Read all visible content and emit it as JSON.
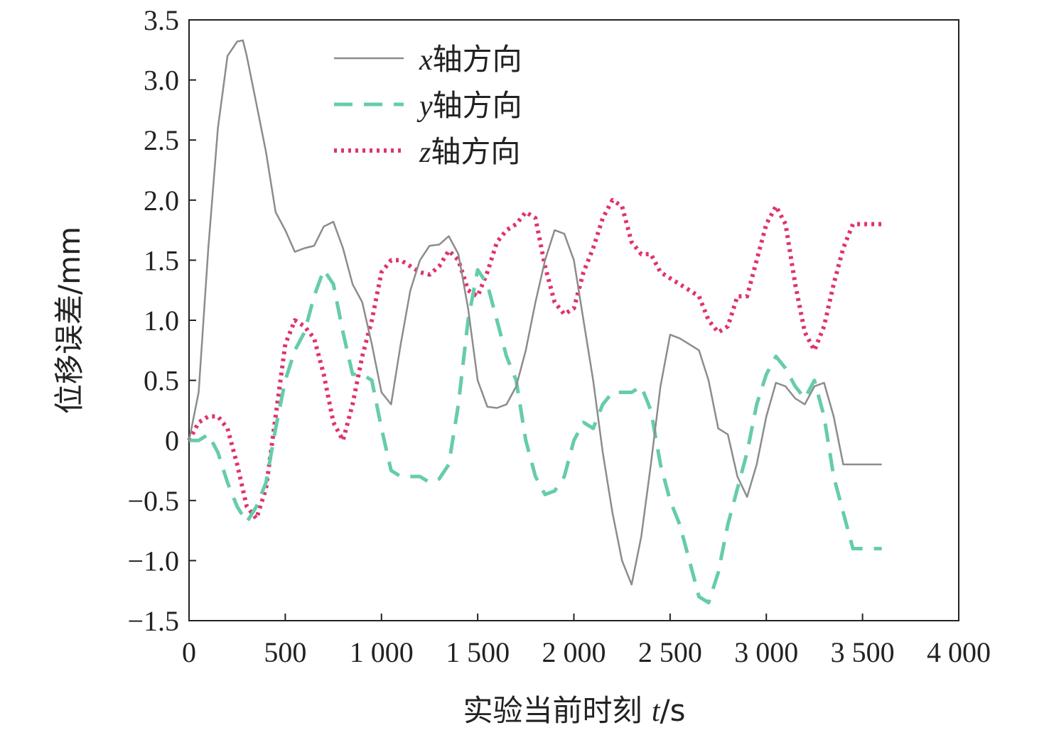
{
  "chart_data": {
    "type": "line",
    "xlabel": {
      "prefix": "实验当前时刻 ",
      "var": "t",
      "suffix": "/s"
    },
    "ylabel": "位移误差/mm",
    "xlim": [
      0,
      4000
    ],
    "ylim": [
      -1.5,
      3.5
    ],
    "x_ticks": [
      0,
      500,
      1000,
      1500,
      2000,
      2500,
      3000,
      3500,
      4000
    ],
    "x_tick_labels": [
      "0",
      "500",
      "1 000",
      "1 500",
      "2 000",
      "2 500",
      "3 000",
      "3 500",
      "4 000"
    ],
    "y_ticks": [
      -1.5,
      -1.0,
      -0.5,
      0,
      0.5,
      1.0,
      1.5,
      2.0,
      2.5,
      3.0,
      3.5
    ],
    "y_tick_labels": [
      "−1.5",
      "−1.0",
      "−0.5",
      "0",
      "0.5",
      "1.0",
      "1.5",
      "2.0",
      "2.5",
      "3.0",
      "3.5"
    ],
    "grid": false,
    "legend_position": "top-left",
    "series": [
      {
        "name": "x轴方向",
        "legend_var": "x",
        "legend_suffix": "轴方向",
        "style": "solid",
        "color": "#8c8c8c",
        "x": [
          0,
          50,
          100,
          150,
          200,
          250,
          280,
          300,
          350,
          400,
          450,
          500,
          550,
          600,
          650,
          700,
          750,
          800,
          850,
          900,
          950,
          1000,
          1050,
          1100,
          1150,
          1200,
          1250,
          1300,
          1350,
          1400,
          1450,
          1500,
          1550,
          1600,
          1650,
          1700,
          1750,
          1800,
          1850,
          1900,
          1950,
          2000,
          2050,
          2100,
          2150,
          2200,
          2250,
          2300,
          2350,
          2400,
          2450,
          2500,
          2550,
          2600,
          2650,
          2700,
          2750,
          2800,
          2850,
          2900,
          2950,
          3000,
          3050,
          3100,
          3150,
          3200,
          3250,
          3300,
          3350,
          3400,
          3450,
          3500,
          3550,
          3600
        ],
        "y": [
          0,
          0.4,
          1.6,
          2.6,
          3.2,
          3.32,
          3.33,
          3.2,
          2.8,
          2.4,
          1.9,
          1.75,
          1.57,
          1.6,
          1.62,
          1.78,
          1.82,
          1.6,
          1.3,
          1.15,
          0.8,
          0.4,
          0.3,
          0.8,
          1.25,
          1.5,
          1.62,
          1.63,
          1.7,
          1.55,
          1.1,
          0.5,
          0.28,
          0.27,
          0.3,
          0.45,
          0.75,
          1.15,
          1.5,
          1.75,
          1.72,
          1.5,
          1.0,
          0.5,
          -0.1,
          -0.6,
          -1.0,
          -1.2,
          -0.8,
          -0.2,
          0.45,
          0.88,
          0.85,
          0.8,
          0.75,
          0.5,
          0.1,
          0.05,
          -0.3,
          -0.47,
          -0.2,
          0.2,
          0.48,
          0.45,
          0.35,
          0.3,
          0.45,
          0.48,
          0.2,
          -0.2,
          -0.2,
          -0.2,
          -0.2,
          -0.2
        ]
      },
      {
        "name": "y轴方向",
        "legend_var": "y",
        "legend_suffix": "轴方向",
        "style": "dashed",
        "color": "#66ccaa",
        "x": [
          0,
          50,
          100,
          150,
          200,
          250,
          300,
          350,
          400,
          450,
          500,
          550,
          600,
          650,
          700,
          750,
          800,
          850,
          900,
          950,
          1000,
          1050,
          1100,
          1150,
          1200,
          1250,
          1300,
          1350,
          1400,
          1450,
          1500,
          1550,
          1600,
          1650,
          1700,
          1750,
          1800,
          1850,
          1900,
          1950,
          2000,
          2050,
          2100,
          2150,
          2200,
          2250,
          2300,
          2350,
          2400,
          2450,
          2500,
          2550,
          2600,
          2650,
          2700,
          2750,
          2800,
          2850,
          2900,
          2950,
          3000,
          3050,
          3100,
          3150,
          3200,
          3250,
          3300,
          3350,
          3400,
          3450,
          3500,
          3550,
          3600
        ],
        "y": [
          0,
          0,
          0.05,
          -0.1,
          -0.35,
          -0.55,
          -0.68,
          -0.55,
          -0.35,
          0.1,
          0.5,
          0.75,
          0.9,
          1.2,
          1.42,
          1.3,
          0.9,
          0.55,
          0.55,
          0.5,
          0.1,
          -0.25,
          -0.3,
          -0.3,
          -0.3,
          -0.35,
          -0.32,
          -0.2,
          0.3,
          1.0,
          1.42,
          1.3,
          1.0,
          0.7,
          0.5,
          0.0,
          -0.3,
          -0.45,
          -0.42,
          -0.3,
          0.0,
          0.15,
          0.1,
          0.3,
          0.4,
          0.4,
          0.4,
          0.45,
          0.25,
          -0.2,
          -0.5,
          -0.7,
          -1.0,
          -1.3,
          -1.35,
          -1.1,
          -0.7,
          -0.4,
          -0.1,
          0.3,
          0.55,
          0.7,
          0.6,
          0.45,
          0.35,
          0.5,
          0.2,
          -0.3,
          -0.6,
          -0.9,
          -0.9,
          -0.9,
          -0.9
        ]
      },
      {
        "name": "z轴方向",
        "legend_var": "z",
        "legend_suffix": "轴方向",
        "style": "dotted",
        "color": "#e0336e",
        "x": [
          0,
          50,
          100,
          150,
          200,
          250,
          300,
          350,
          400,
          450,
          500,
          550,
          600,
          650,
          700,
          750,
          800,
          850,
          900,
          950,
          1000,
          1050,
          1100,
          1150,
          1200,
          1250,
          1300,
          1350,
          1400,
          1450,
          1500,
          1550,
          1600,
          1650,
          1700,
          1750,
          1800,
          1850,
          1900,
          1950,
          2000,
          2050,
          2100,
          2150,
          2200,
          2250,
          2300,
          2350,
          2400,
          2450,
          2500,
          2550,
          2600,
          2650,
          2700,
          2750,
          2800,
          2850,
          2900,
          2950,
          3000,
          3050,
          3100,
          3150,
          3200,
          3250,
          3300,
          3350,
          3400,
          3450,
          3500,
          3550,
          3600
        ],
        "y": [
          0,
          0.15,
          0.2,
          0.2,
          0.1,
          -0.2,
          -0.55,
          -0.65,
          -0.4,
          0.2,
          0.8,
          1.0,
          0.95,
          0.85,
          0.55,
          0.15,
          0.0,
          0.3,
          0.7,
          1.0,
          1.4,
          1.5,
          1.5,
          1.45,
          1.4,
          1.38,
          1.45,
          1.58,
          1.5,
          1.25,
          1.2,
          1.4,
          1.65,
          1.75,
          1.8,
          1.9,
          1.85,
          1.45,
          1.15,
          1.05,
          1.1,
          1.4,
          1.6,
          1.85,
          2.0,
          1.95,
          1.65,
          1.55,
          1.55,
          1.4,
          1.35,
          1.3,
          1.25,
          1.2,
          1.0,
          0.9,
          0.95,
          1.2,
          1.2,
          1.5,
          1.8,
          1.95,
          1.8,
          1.3,
          0.9,
          0.75,
          0.95,
          1.3,
          1.6,
          1.8,
          1.8,
          1.8,
          1.8
        ]
      }
    ]
  }
}
